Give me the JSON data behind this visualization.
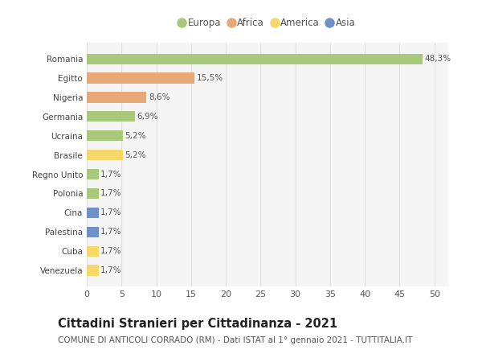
{
  "categories": [
    "Venezuela",
    "Cuba",
    "Palestina",
    "Cina",
    "Polonia",
    "Regno Unito",
    "Brasile",
    "Ucraina",
    "Germania",
    "Nigeria",
    "Egitto",
    "Romania"
  ],
  "values": [
    1.7,
    1.7,
    1.7,
    1.7,
    1.7,
    1.7,
    5.2,
    5.2,
    6.9,
    8.6,
    15.5,
    48.3
  ],
  "colors": [
    "#f5d76a",
    "#f5d76a",
    "#7090c8",
    "#7090c8",
    "#a8c87a",
    "#a8c87a",
    "#f5d76a",
    "#a8c87a",
    "#a8c87a",
    "#e8a878",
    "#e8a878",
    "#a8c87a"
  ],
  "labels": [
    "1,7%",
    "1,7%",
    "1,7%",
    "1,7%",
    "1,7%",
    "1,7%",
    "5,2%",
    "5,2%",
    "6,9%",
    "8,6%",
    "15,5%",
    "48,3%"
  ],
  "legend": [
    {
      "label": "Europa",
      "color": "#a8c87a"
    },
    {
      "label": "Africa",
      "color": "#e8a878"
    },
    {
      "label": "America",
      "color": "#f5d76a"
    },
    {
      "label": "Asia",
      "color": "#7090c8"
    }
  ],
  "xlim": [
    0,
    52
  ],
  "xticks": [
    0,
    5,
    10,
    15,
    20,
    25,
    30,
    35,
    40,
    45,
    50
  ],
  "title": "Cittadini Stranieri per Cittadinanza - 2021",
  "subtitle": "COMUNE DI ANTICOLI CORRADO (RM) - Dati ISTAT al 1° gennaio 2021 - TUTTITALIA.IT",
  "bg_color": "#f5f5f5",
  "fig_color": "#ffffff",
  "grid_color": "#e0e0e0",
  "bar_height": 0.55,
  "title_fontsize": 10.5,
  "subtitle_fontsize": 7.5,
  "label_fontsize": 7.5,
  "ytick_fontsize": 7.5,
  "xtick_fontsize": 8,
  "legend_fontsize": 8.5
}
